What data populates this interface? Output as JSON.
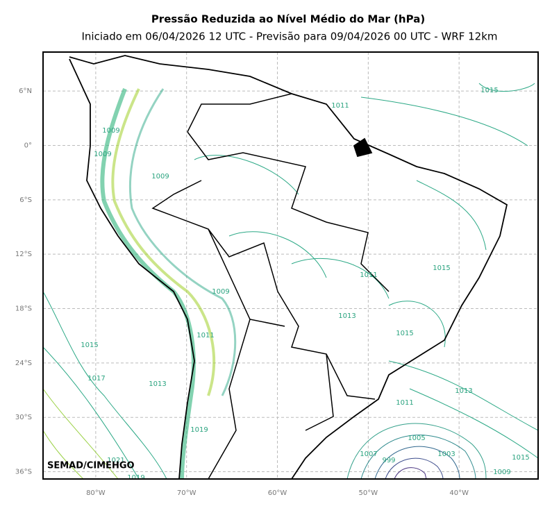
{
  "header": {
    "title": "Pressão Reduzida ao Nível Médio do Mar (hPa)",
    "subtitle": "Iniciado em 06/04/2026 12 UTC - Previsão para 09/04/2026 00 UTC - WRF 12km"
  },
  "map": {
    "xlim": [
      -85.8,
      -31.3
    ],
    "ylim": [
      -36.8,
      10.3
    ],
    "xticks": [
      {
        "value": -80,
        "label": "80°W"
      },
      {
        "value": -70,
        "label": "70°W"
      },
      {
        "value": -60,
        "label": "60°W"
      },
      {
        "value": -50,
        "label": "50°W"
      },
      {
        "value": -40,
        "label": "40°W"
      }
    ],
    "yticks": [
      {
        "value": 6,
        "label": "6°N"
      },
      {
        "value": 0,
        "label": "0°"
      },
      {
        "value": -6,
        "label": "6°S"
      },
      {
        "value": -12,
        "label": "12°S"
      },
      {
        "value": -18,
        "label": "18°S"
      },
      {
        "value": -24,
        "label": "24°S"
      },
      {
        "value": -30,
        "label": "30°S"
      },
      {
        "value": -36,
        "label": "36°S"
      }
    ],
    "grid": true,
    "contour_labels": [
      1015,
      1011,
      1009,
      1009,
      1009,
      1015,
      1011,
      1009,
      1013,
      1015,
      1011,
      1015,
      1017,
      1013,
      1013,
      1011,
      1019,
      1005,
      1007,
      1003,
      999,
      1021,
      1015,
      1009,
      1019
    ],
    "credit": "SEMAD/CIMEHGO"
  }
}
